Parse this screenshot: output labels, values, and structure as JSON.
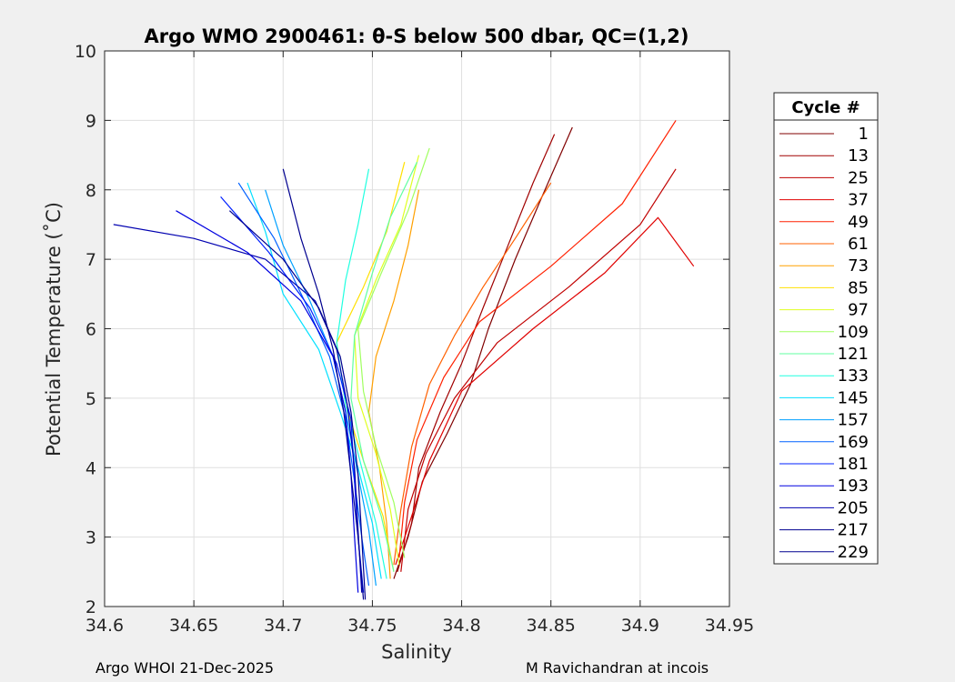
{
  "chart_data": {
    "type": "line",
    "title": "Argo WMO 2900461: θ-S below 500 dbar,  QC=(1,2)",
    "xlabel": "Salinity",
    "ylabel": "Potential Temperature (˚C)",
    "xlim": [
      34.6,
      34.95
    ],
    "ylim": [
      2,
      10
    ],
    "x_ticks": [
      "34.6",
      "34.65",
      "34.7",
      "34.75",
      "34.8",
      "34.85",
      "34.9",
      "34.95"
    ],
    "y_ticks": [
      "2",
      "3",
      "4",
      "5",
      "6",
      "7",
      "8",
      "9",
      "10"
    ],
    "grid": true,
    "legend": {
      "title": "Cycle #",
      "placement": "right-outside",
      "entries": [
        {
          "label": "1",
          "color": "#800000"
        },
        {
          "label": "13",
          "color": "#a00000"
        },
        {
          "label": "25",
          "color": "#c00000"
        },
        {
          "label": "37",
          "color": "#e00000"
        },
        {
          "label": "49",
          "color": "#ff2000"
        },
        {
          "label": "61",
          "color": "#ff6000"
        },
        {
          "label": "73",
          "color": "#ffa000"
        },
        {
          "label": "85",
          "color": "#ffe000"
        },
        {
          "label": "97",
          "color": "#e0ff20"
        },
        {
          "label": "109",
          "color": "#a0ff60"
        },
        {
          "label": "121",
          "color": "#60ffa0"
        },
        {
          "label": "133",
          "color": "#20ffe0"
        },
        {
          "label": "145",
          "color": "#00e0ff"
        },
        {
          "label": "157",
          "color": "#00a0ff"
        },
        {
          "label": "169",
          "color": "#0060ff"
        },
        {
          "label": "181",
          "color": "#0020ff"
        },
        {
          "label": "193",
          "color": "#0000e0"
        },
        {
          "label": "205",
          "color": "#0000b0"
        },
        {
          "label": "217",
          "color": "#000090"
        },
        {
          "label": "229",
          "color": "#00008f"
        }
      ]
    },
    "series": [
      {
        "color": "#800000",
        "x": [
          34.762,
          34.77,
          34.778,
          34.792,
          34.805,
          34.815,
          34.83,
          34.845,
          34.862
        ],
        "y": [
          2.4,
          3.0,
          3.8,
          4.5,
          5.2,
          6.0,
          7.0,
          7.9,
          8.9
        ]
      },
      {
        "color": "#a00000",
        "x": [
          34.764,
          34.772,
          34.776,
          34.788,
          34.8,
          34.812,
          34.826,
          34.84,
          34.852
        ],
        "y": [
          2.5,
          3.2,
          4.0,
          4.8,
          5.5,
          6.3,
          7.2,
          8.1,
          8.8
        ]
      },
      {
        "color": "#c00000",
        "x": [
          34.766,
          34.77,
          34.78,
          34.796,
          34.82,
          34.86,
          34.9,
          34.92
        ],
        "y": [
          2.5,
          3.4,
          4.2,
          5.0,
          5.8,
          6.6,
          7.5,
          8.3
        ]
      },
      {
        "color": "#e00000",
        "x": [
          34.763,
          34.772,
          34.782,
          34.8,
          34.84,
          34.88,
          34.91,
          34.93
        ],
        "y": [
          2.6,
          3.3,
          4.1,
          5.1,
          6.0,
          6.8,
          7.6,
          6.9
        ]
      },
      {
        "color": "#ff2000",
        "x": [
          34.765,
          34.768,
          34.775,
          34.79,
          34.81,
          34.85,
          34.89,
          34.92
        ],
        "y": [
          2.7,
          3.5,
          4.4,
          5.3,
          6.1,
          6.9,
          7.8,
          9.0
        ]
      },
      {
        "color": "#ff6000",
        "x": [
          34.762,
          34.766,
          34.772,
          34.782,
          34.796,
          34.812,
          34.83,
          34.85
        ],
        "y": [
          2.6,
          3.4,
          4.3,
          5.2,
          5.9,
          6.6,
          7.3,
          8.1
        ]
      },
      {
        "color": "#ffa000",
        "x": [
          34.76,
          34.758,
          34.754,
          34.748,
          34.752,
          34.762,
          34.77,
          34.776
        ],
        "y": [
          2.4,
          3.2,
          4.0,
          4.8,
          5.6,
          6.4,
          7.2,
          8.0
        ]
      },
      {
        "color": "#ffe000",
        "x": [
          34.762,
          34.756,
          34.745,
          34.735,
          34.73,
          34.745,
          34.758,
          34.768
        ],
        "y": [
          2.5,
          3.3,
          4.1,
          4.9,
          5.8,
          6.6,
          7.4,
          8.4
        ]
      },
      {
        "color": "#e0ff20",
        "x": [
          34.765,
          34.76,
          34.752,
          34.742,
          34.74,
          34.752,
          34.766,
          34.776
        ],
        "y": [
          2.6,
          3.4,
          4.2,
          5.0,
          5.9,
          6.7,
          7.5,
          8.5
        ]
      },
      {
        "color": "#a0ff60",
        "x": [
          34.768,
          34.762,
          34.752,
          34.745,
          34.742,
          34.755,
          34.77,
          34.782
        ],
        "y": [
          2.7,
          3.5,
          4.3,
          5.1,
          6.0,
          6.8,
          7.7,
          8.6
        ]
      },
      {
        "color": "#60ffa0",
        "x": [
          34.762,
          34.755,
          34.745,
          34.738,
          34.74,
          34.75,
          34.76,
          34.775
        ],
        "y": [
          2.5,
          3.3,
          4.1,
          5.0,
          5.9,
          6.8,
          7.6,
          8.4
        ]
      },
      {
        "color": "#20ffe0",
        "x": [
          34.758,
          34.752,
          34.744,
          34.735,
          34.73,
          34.735,
          34.742,
          34.748
        ],
        "y": [
          2.4,
          3.2,
          4.0,
          4.9,
          5.8,
          6.7,
          7.5,
          8.3
        ]
      },
      {
        "color": "#00e0ff",
        "x": [
          34.755,
          34.75,
          34.742,
          34.732,
          34.72,
          34.7,
          34.69,
          34.68
        ],
        "y": [
          2.4,
          3.2,
          4.0,
          4.8,
          5.7,
          6.5,
          7.4,
          8.1
        ]
      },
      {
        "color": "#00a0ff",
        "x": [
          34.752,
          34.748,
          34.742,
          34.735,
          34.728,
          34.715,
          34.7,
          34.69
        ],
        "y": [
          2.3,
          3.1,
          3.9,
          4.8,
          5.6,
          6.4,
          7.2,
          8.0
        ]
      },
      {
        "color": "#0060ff",
        "x": [
          34.748,
          34.744,
          34.74,
          34.735,
          34.726,
          34.712,
          34.695,
          34.675
        ],
        "y": [
          2.3,
          3.0,
          3.8,
          4.7,
          5.6,
          6.4,
          7.3,
          8.1
        ]
      },
      {
        "color": "#0020ff",
        "x": [
          34.745,
          34.742,
          34.74,
          34.738,
          34.73,
          34.715,
          34.692,
          34.665
        ],
        "y": [
          2.2,
          3.0,
          3.8,
          4.7,
          5.5,
          6.3,
          7.1,
          7.9
        ]
      },
      {
        "color": "#0000e0",
        "x": [
          34.742,
          34.74,
          34.738,
          34.735,
          34.728,
          34.71,
          34.68,
          34.64
        ],
        "y": [
          2.2,
          3.0,
          3.9,
          4.8,
          5.6,
          6.4,
          7.1,
          7.7
        ]
      },
      {
        "color": "#0000b0",
        "x": [
          34.744,
          34.742,
          34.74,
          34.736,
          34.73,
          34.718,
          34.69,
          34.65,
          34.605
        ],
        "y": [
          2.2,
          3.1,
          4.0,
          4.9,
          5.7,
          6.4,
          7.0,
          7.3,
          7.5
        ]
      },
      {
        "color": "#000090",
        "x": [
          34.746,
          34.744,
          34.742,
          34.738,
          34.732,
          34.72,
          34.7,
          34.67
        ],
        "y": [
          2.1,
          3.0,
          3.9,
          4.8,
          5.6,
          6.3,
          7.0,
          7.7
        ]
      },
      {
        "color": "#00008f",
        "x": [
          34.745,
          34.742,
          34.738,
          34.734,
          34.728,
          34.72,
          34.71,
          34.7
        ],
        "y": [
          2.1,
          3.0,
          3.9,
          4.8,
          5.7,
          6.5,
          7.3,
          8.3
        ]
      }
    ]
  },
  "footer": {
    "left": "Argo WHOI 21-Dec-2025",
    "right": "M Ravichandran at incois"
  }
}
